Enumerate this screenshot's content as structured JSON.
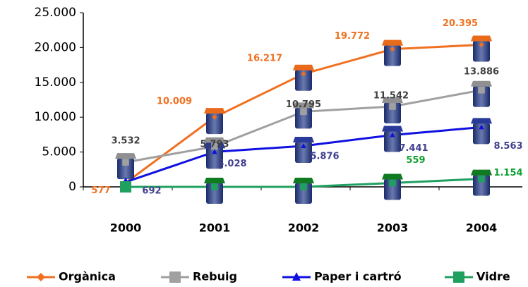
{
  "chart_data": {
    "type": "line",
    "categories": [
      "2000",
      "2001",
      "2002",
      "2003",
      "2004"
    ],
    "series": [
      {
        "name": "Orgànica",
        "color": "#f07020",
        "marker": "diamond",
        "values": [
          577,
          10009,
          16217,
          19772,
          20395
        ],
        "value_labels": [
          "577",
          "10.009",
          "16.217",
          "19.772",
          "20.395"
        ]
      },
      {
        "name": "Rebuig",
        "color": "#a0a0a0",
        "marker": "square",
        "values": [
          3532,
          5793,
          10795,
          11542,
          13886
        ],
        "value_labels": [
          "3.532",
          "5.793",
          "10.795",
          "11.542",
          "13.886"
        ]
      },
      {
        "name": "Paper i cartró",
        "color": "#1010e0",
        "marker": "triangle",
        "values": [
          692,
          5028,
          5876,
          7441,
          8563
        ],
        "value_labels": [
          "692",
          "5.028",
          "5.876",
          "7.441",
          "8.563"
        ]
      },
      {
        "name": "Vidre",
        "color": "#20a060",
        "marker": "square",
        "values": [
          0,
          0,
          0,
          559,
          1154
        ],
        "value_labels": [
          null,
          null,
          null,
          "559",
          "1.154"
        ]
      }
    ],
    "label_colors": [
      "#f07020",
      "#404040",
      "#404090",
      "#10a030"
    ],
    "ylim": [
      0,
      25000
    ],
    "yticks": [
      0,
      {
        "value": 5000,
        "label": "5.000"
      },
      {
        "value": 10000,
        "label": "10.000"
      },
      {
        "value": 15000,
        "label": "15.000"
      },
      {
        "value": 20000,
        "label": "20.000"
      },
      {
        "value": 25000,
        "label": "25.000"
      }
    ],
    "grid": false
  }
}
